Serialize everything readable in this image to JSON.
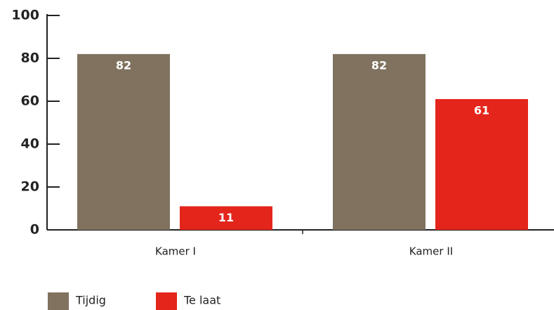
{
  "chart_data": {
    "type": "bar",
    "categories": [
      "Kamer I",
      "Kamer II"
    ],
    "series": [
      {
        "name": "Tijdig",
        "color": "#80725f",
        "values": [
          82,
          82
        ]
      },
      {
        "name": "Te laat",
        "color": "#e3251c",
        "values": [
          11,
          61
        ]
      }
    ],
    "ylim": [
      0,
      100
    ],
    "yticks": [
      0,
      20,
      40,
      60,
      80,
      100
    ],
    "grid": false
  }
}
